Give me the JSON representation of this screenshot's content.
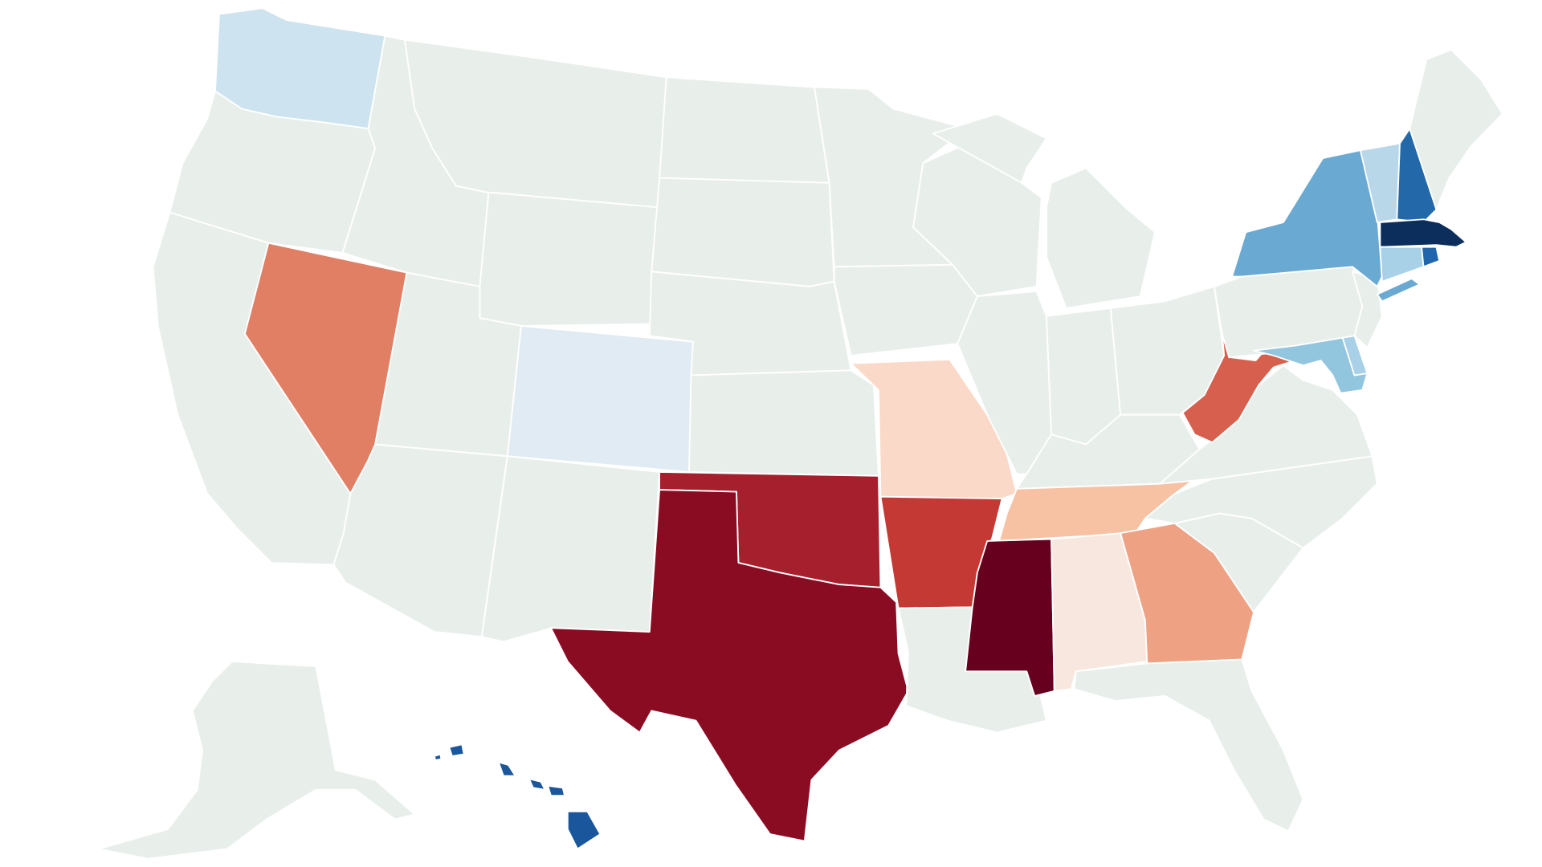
{
  "map": {
    "type": "choropleth",
    "region": "United States",
    "default_color": "#e8efeb",
    "stroke_color": "#ffffff",
    "states": [
      {
        "id": "WA",
        "color": "#cde3ef"
      },
      {
        "id": "OR",
        "color": "#e8efeb"
      },
      {
        "id": "CA",
        "color": "#e8efeb"
      },
      {
        "id": "NV",
        "color": "#e17f65"
      },
      {
        "id": "ID",
        "color": "#e8efeb"
      },
      {
        "id": "MT",
        "color": "#e8efeb"
      },
      {
        "id": "WY",
        "color": "#e8efeb"
      },
      {
        "id": "UT",
        "color": "#e8efeb"
      },
      {
        "id": "CO",
        "color": "#e1ebf3"
      },
      {
        "id": "AZ",
        "color": "#e8efeb"
      },
      {
        "id": "NM",
        "color": "#e8efeb"
      },
      {
        "id": "ND",
        "color": "#e8efeb"
      },
      {
        "id": "SD",
        "color": "#e8efeb"
      },
      {
        "id": "NE",
        "color": "#e8efeb"
      },
      {
        "id": "KS",
        "color": "#e8efeb"
      },
      {
        "id": "OK",
        "color": "#a51f2d"
      },
      {
        "id": "TX",
        "color": "#8a0c23"
      },
      {
        "id": "MN",
        "color": "#e8efeb"
      },
      {
        "id": "IA",
        "color": "#e8efeb"
      },
      {
        "id": "MO",
        "color": "#fad9c8"
      },
      {
        "id": "AR",
        "color": "#c43934"
      },
      {
        "id": "LA",
        "color": "#e8efeb"
      },
      {
        "id": "WI",
        "color": "#e8efeb"
      },
      {
        "id": "IL",
        "color": "#e8efeb"
      },
      {
        "id": "MI",
        "color": "#e8efeb"
      },
      {
        "id": "IN",
        "color": "#e8efeb"
      },
      {
        "id": "OH",
        "color": "#e8efeb"
      },
      {
        "id": "KY",
        "color": "#e8efeb"
      },
      {
        "id": "TN",
        "color": "#f7c1a4"
      },
      {
        "id": "MS",
        "color": "#67001f"
      },
      {
        "id": "AL",
        "color": "#f8e7df"
      },
      {
        "id": "GA",
        "color": "#efa283"
      },
      {
        "id": "FL",
        "color": "#e8efeb"
      },
      {
        "id": "SC",
        "color": "#e8efeb"
      },
      {
        "id": "NC",
        "color": "#e8efeb"
      },
      {
        "id": "VA",
        "color": "#e8efeb"
      },
      {
        "id": "WV",
        "color": "#d6604d"
      },
      {
        "id": "MD",
        "color": "#92c5de"
      },
      {
        "id": "DE",
        "color": "#a8d0e6"
      },
      {
        "id": "PA",
        "color": "#e8efeb"
      },
      {
        "id": "NJ",
        "color": "#e8efeb"
      },
      {
        "id": "NY",
        "color": "#6aaad2"
      },
      {
        "id": "CT",
        "color": "#a8d0e6"
      },
      {
        "id": "RI",
        "color": "#2166ac"
      },
      {
        "id": "MA",
        "color": "#0b2e5c"
      },
      {
        "id": "VT",
        "color": "#b8d8ea"
      },
      {
        "id": "NH",
        "color": "#2369a9"
      },
      {
        "id": "ME",
        "color": "#e8efeb"
      },
      {
        "id": "AK",
        "color": "#e8efeb"
      },
      {
        "id": "HI",
        "color": "#1a569b"
      }
    ]
  }
}
